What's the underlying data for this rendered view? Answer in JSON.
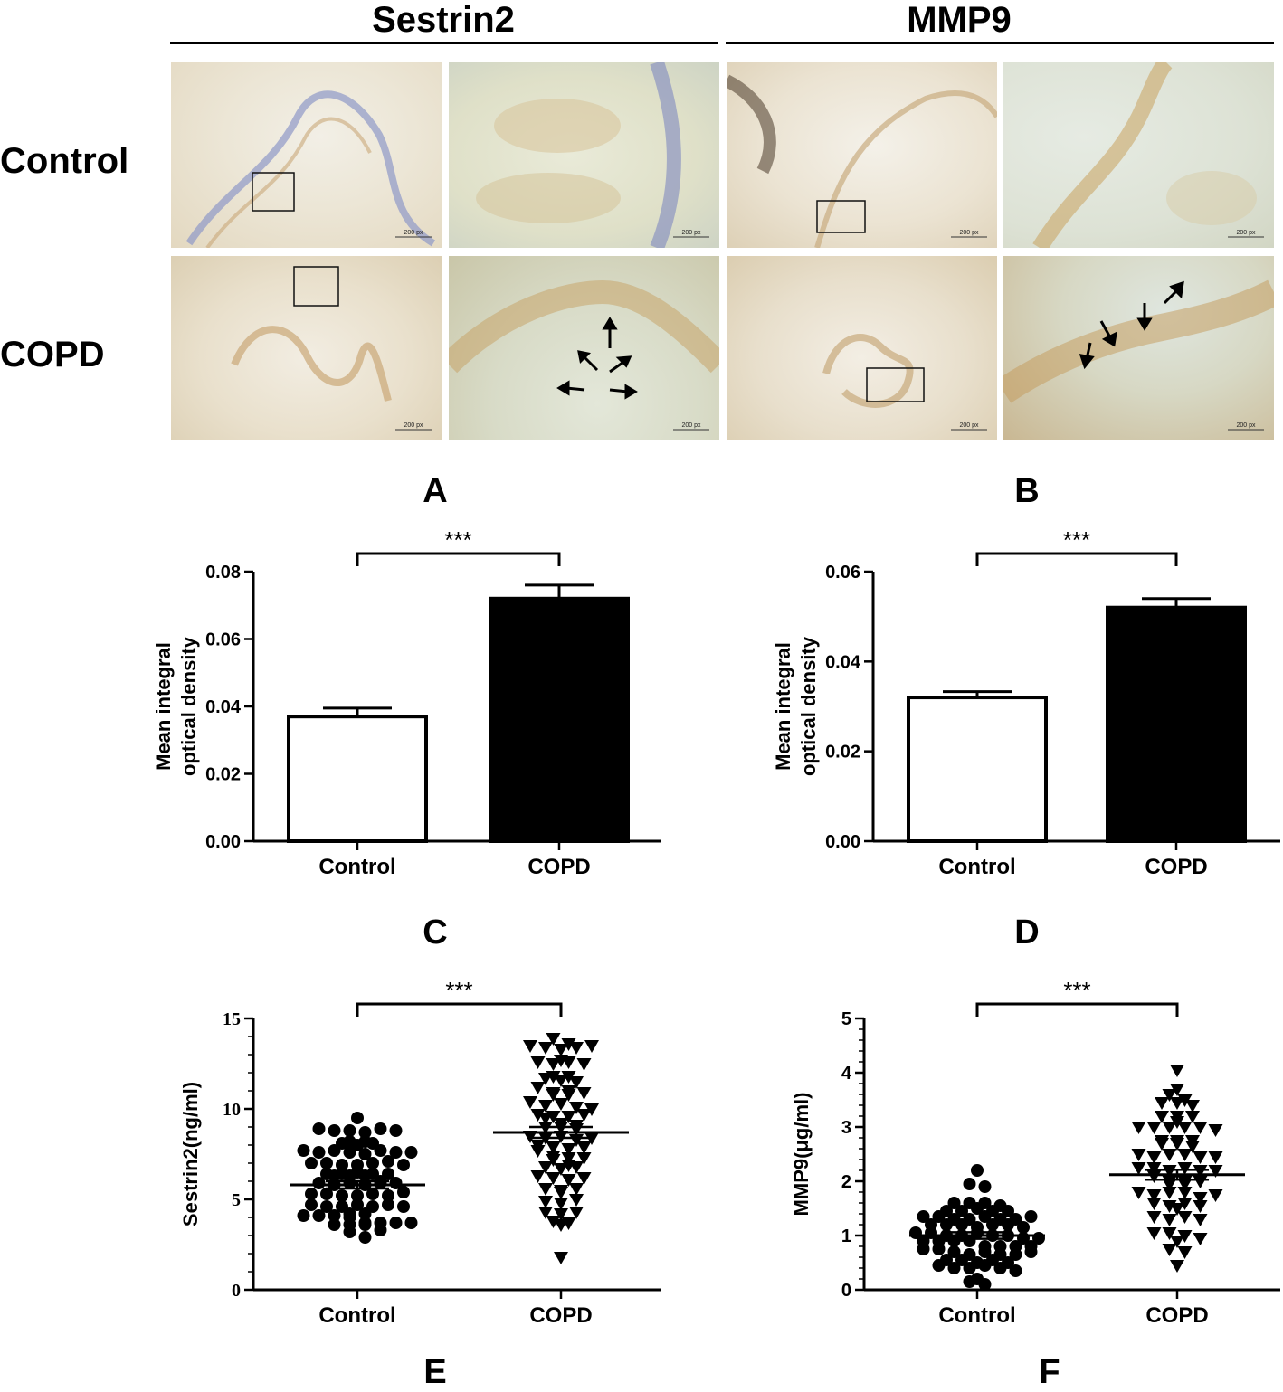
{
  "headers": {
    "sestrin2": "Sestrin2",
    "mmp9": "MMP9",
    "row_control": "Control",
    "row_copd": "COPD"
  },
  "scale_label": "200 px",
  "panel_letters": [
    "A",
    "B",
    "C",
    "D",
    "E",
    "F"
  ],
  "chart_data": [
    {
      "panel": "C",
      "type": "bar",
      "categories": [
        "Control",
        "COPD"
      ],
      "values": [
        0.037,
        0.072
      ],
      "errors": [
        0.0025,
        0.004
      ],
      "fills": [
        "#ffffff",
        "#000000"
      ],
      "ylabel": [
        "Mean integral",
        "optical density"
      ],
      "ylim": [
        0,
        0.08
      ],
      "yticks": [
        "0.00",
        "0.02",
        "0.04",
        "0.06",
        "0.08"
      ],
      "significance": "***"
    },
    {
      "panel": "D",
      "type": "bar",
      "categories": [
        "Control",
        "COPD"
      ],
      "values": [
        0.032,
        0.052
      ],
      "errors": [
        0.0013,
        0.002
      ],
      "fills": [
        "#ffffff",
        "#000000"
      ],
      "ylabel": [
        "Mean integral",
        "optical density"
      ],
      "ylim": [
        0,
        0.06
      ],
      "yticks": [
        "0.00",
        "0.02",
        "0.04",
        "0.06"
      ],
      "significance": "***"
    },
    {
      "panel": "E",
      "type": "scatter",
      "categories": [
        "Control",
        "COPD"
      ],
      "ylabel": "Sestrin2(ng/ml)",
      "ylim": [
        0,
        15
      ],
      "yticks": [
        "0",
        "5",
        "10",
        "15"
      ],
      "significance": "***",
      "groups": [
        {
          "name": "Control",
          "marker": "circle",
          "mean": 5.8,
          "sem": 0.2,
          "values": [
            9.5,
            8.9,
            8.8,
            8.8,
            8.7,
            8.9,
            8.8,
            8.2,
            8.1,
            8.0,
            8.1,
            8.2,
            7.7,
            7.6,
            7.7,
            7.6,
            7.5,
            7.7,
            7.6,
            7.6,
            7.0,
            7.0,
            6.9,
            6.9,
            7.0,
            7.1,
            6.9,
            6.4,
            6.3,
            6.4,
            6.3,
            6.5,
            6.4,
            6.4,
            6.3,
            5.9,
            5.8,
            5.9,
            6.0,
            5.8,
            5.9,
            5.9,
            5.3,
            5.3,
            5.2,
            5.2,
            5.3,
            5.2,
            5.4,
            4.7,
            4.6,
            4.6,
            4.7,
            4.6,
            4.7,
            4.6,
            4.1,
            4.2,
            4.1,
            4.2,
            4.1,
            4.0,
            3.7,
            3.6,
            3.7,
            3.6,
            3.7,
            3.7,
            3.6,
            3.3,
            3.2,
            2.9
          ]
        },
        {
          "name": "COPD",
          "marker": "triangle-down",
          "mean": 8.7,
          "sem": 0.3,
          "values": [
            13.9,
            13.6,
            13.5,
            13.4,
            13.3,
            13.4,
            13.5,
            12.6,
            12.5,
            12.7,
            12.6,
            12.5,
            11.8,
            11.7,
            11.8,
            11.6,
            11.5,
            11.2,
            10.9,
            10.8,
            11.0,
            10.9,
            10.8,
            10.4,
            10.2,
            10.3,
            10.1,
            10.0,
            9.7,
            9.6,
            9.5,
            9.6,
            9.7,
            9.2,
            9.0,
            9.1,
            9.0,
            8.9,
            8.5,
            8.4,
            8.5,
            8.3,
            8.4,
            8.0,
            7.9,
            7.8,
            7.9,
            7.7,
            7.4,
            7.3,
            7.2,
            7.3,
            6.9,
            6.8,
            6.7,
            6.8,
            6.3,
            6.2,
            6.1,
            6.2,
            5.6,
            5.5,
            5.4,
            5.6,
            4.9,
            4.8,
            5.0,
            4.3,
            4.2,
            4.3,
            3.8,
            3.7,
            3.6,
            1.8
          ]
        }
      ]
    },
    {
      "panel": "F",
      "type": "scatter",
      "categories": [
        "Control",
        "COPD"
      ],
      "ylabel": "MMP9(μg/ml)",
      "ylim": [
        0,
        5
      ],
      "yticks": [
        "0",
        "1",
        "2",
        "3",
        "4",
        "5"
      ],
      "significance": "***",
      "groups": [
        {
          "name": "Control",
          "marker": "circle",
          "mean": 1.0,
          "sem": 0.06,
          "values": [
            2.2,
            1.95,
            1.9,
            1.6,
            1.6,
            1.6,
            1.55,
            1.45,
            1.45,
            1.5,
            1.45,
            1.45,
            1.35,
            1.35,
            1.3,
            1.3,
            1.35,
            1.3,
            1.3,
            1.35,
            1.2,
            1.2,
            1.2,
            1.15,
            1.2,
            1.2,
            1.15,
            1.05,
            1.05,
            1.0,
            1.0,
            1.05,
            1.0,
            1.0,
            0.9,
            0.9,
            0.95,
            0.9,
            0.9,
            0.95,
            0.8,
            0.8,
            0.75,
            0.8,
            0.75,
            0.8,
            0.7,
            0.65,
            0.7,
            0.65,
            0.65,
            0.7,
            0.55,
            0.55,
            0.5,
            0.55,
            0.5,
            0.45,
            0.4,
            0.4,
            0.45,
            0.4,
            0.35,
            0.2,
            0.15,
            0.1
          ]
        },
        {
          "name": "COPD",
          "marker": "triangle-down",
          "mean": 2.12,
          "sem": 0.09,
          "values": [
            4.05,
            3.7,
            3.6,
            3.5,
            3.45,
            3.45,
            3.4,
            3.2,
            3.2,
            3.1,
            3.2,
            3.0,
            3.0,
            3.0,
            3.0,
            3.0,
            2.95,
            2.75,
            2.75,
            2.7,
            2.7,
            2.75,
            2.65,
            2.5,
            2.45,
            2.5,
            2.5,
            2.45,
            2.45,
            2.25,
            2.25,
            2.2,
            2.25,
            2.2,
            2.2,
            2.1,
            2.0,
            2.0,
            1.95,
            2.0,
            1.95,
            1.8,
            1.75,
            1.8,
            1.8,
            1.7,
            1.75,
            1.6,
            1.55,
            1.6,
            1.55,
            1.5,
            1.35,
            1.3,
            1.35,
            1.3,
            1.05,
            1.05,
            1.0,
            0.9,
            0.95,
            0.75,
            0.7,
            0.45
          ]
        }
      ]
    }
  ]
}
